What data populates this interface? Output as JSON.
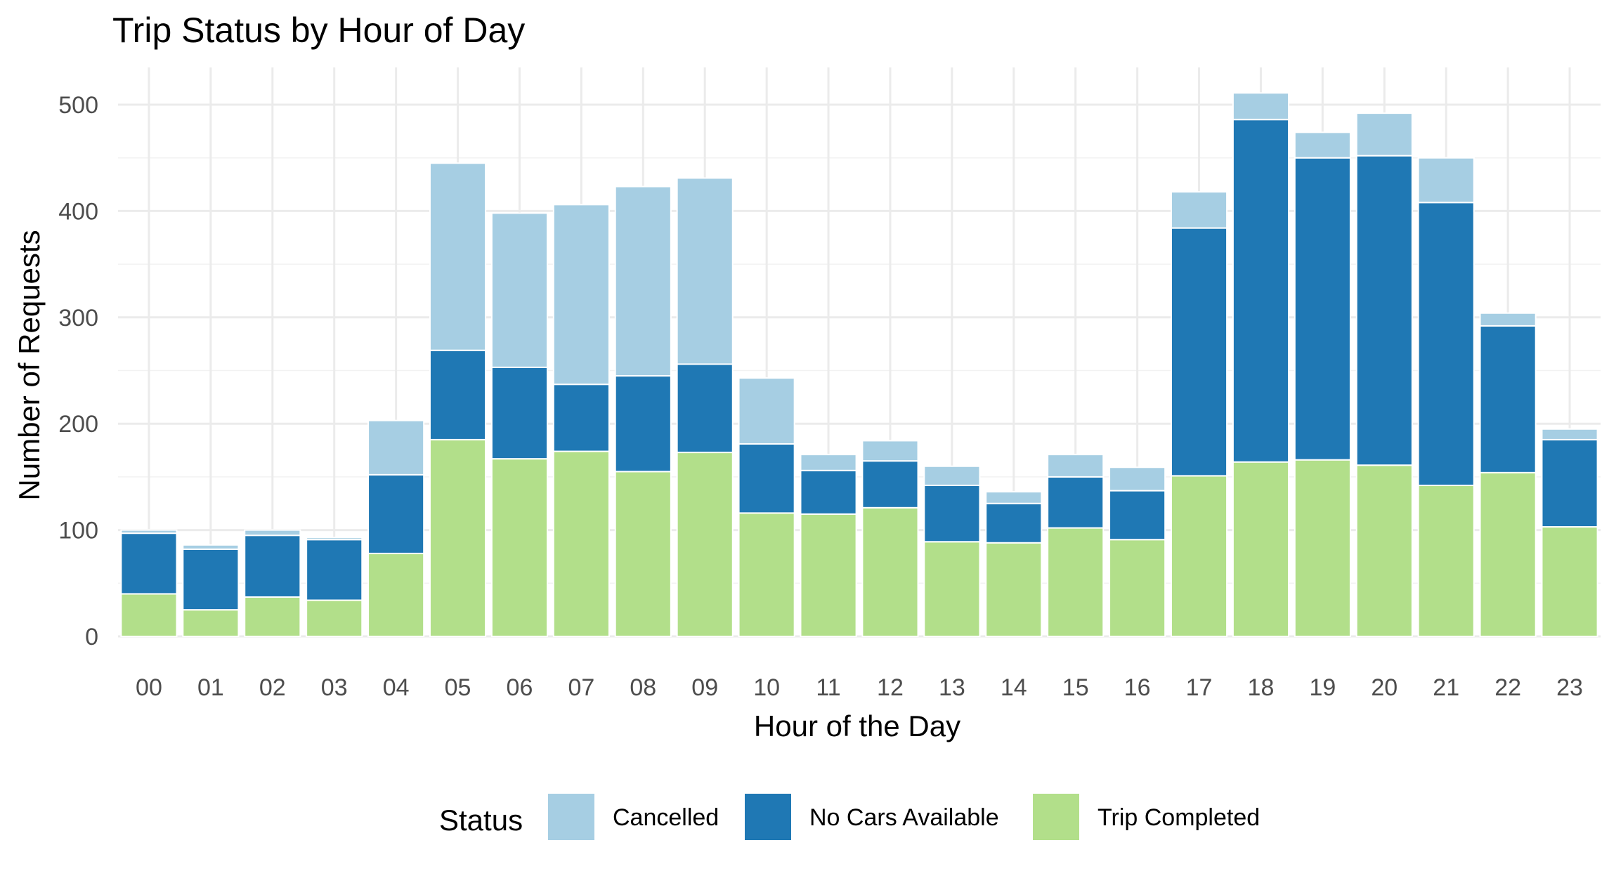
{
  "chart_data": {
    "type": "bar",
    "stacked": true,
    "title": "Trip Status by Hour of Day",
    "xlabel": "Hour of the Day",
    "ylabel": "Number of Requests",
    "ylim": [
      0,
      535
    ],
    "yticks": [
      0,
      100,
      200,
      300,
      400,
      500
    ],
    "grid": true,
    "legend": {
      "title": "Status",
      "position": "bottom"
    },
    "categories": [
      "00",
      "01",
      "02",
      "03",
      "04",
      "05",
      "06",
      "07",
      "08",
      "09",
      "10",
      "11",
      "12",
      "13",
      "14",
      "15",
      "16",
      "17",
      "18",
      "19",
      "20",
      "21",
      "22",
      "23"
    ],
    "series": [
      {
        "name": "Trip Completed",
        "color": "#b2df8a",
        "values": [
          40,
          25,
          37,
          34,
          78,
          185,
          167,
          174,
          155,
          173,
          116,
          115,
          121,
          89,
          88,
          102,
          91,
          151,
          164,
          166,
          161,
          142,
          154,
          103
        ]
      },
      {
        "name": "No Cars Available",
        "color": "#1f78b4",
        "values": [
          57,
          57,
          58,
          57,
          74,
          84,
          86,
          63,
          90,
          83,
          65,
          41,
          44,
          53,
          37,
          48,
          46,
          233,
          322,
          284,
          291,
          266,
          138,
          82
        ]
      },
      {
        "name": "Cancelled",
        "color": "#a6cee3",
        "values": [
          3,
          4,
          5,
          2,
          51,
          176,
          145,
          169,
          178,
          175,
          62,
          15,
          19,
          18,
          11,
          21,
          22,
          34,
          25,
          24,
          40,
          42,
          12,
          10
        ]
      }
    ],
    "legend_order": [
      "Cancelled",
      "No Cars Available",
      "Trip Completed"
    ]
  }
}
